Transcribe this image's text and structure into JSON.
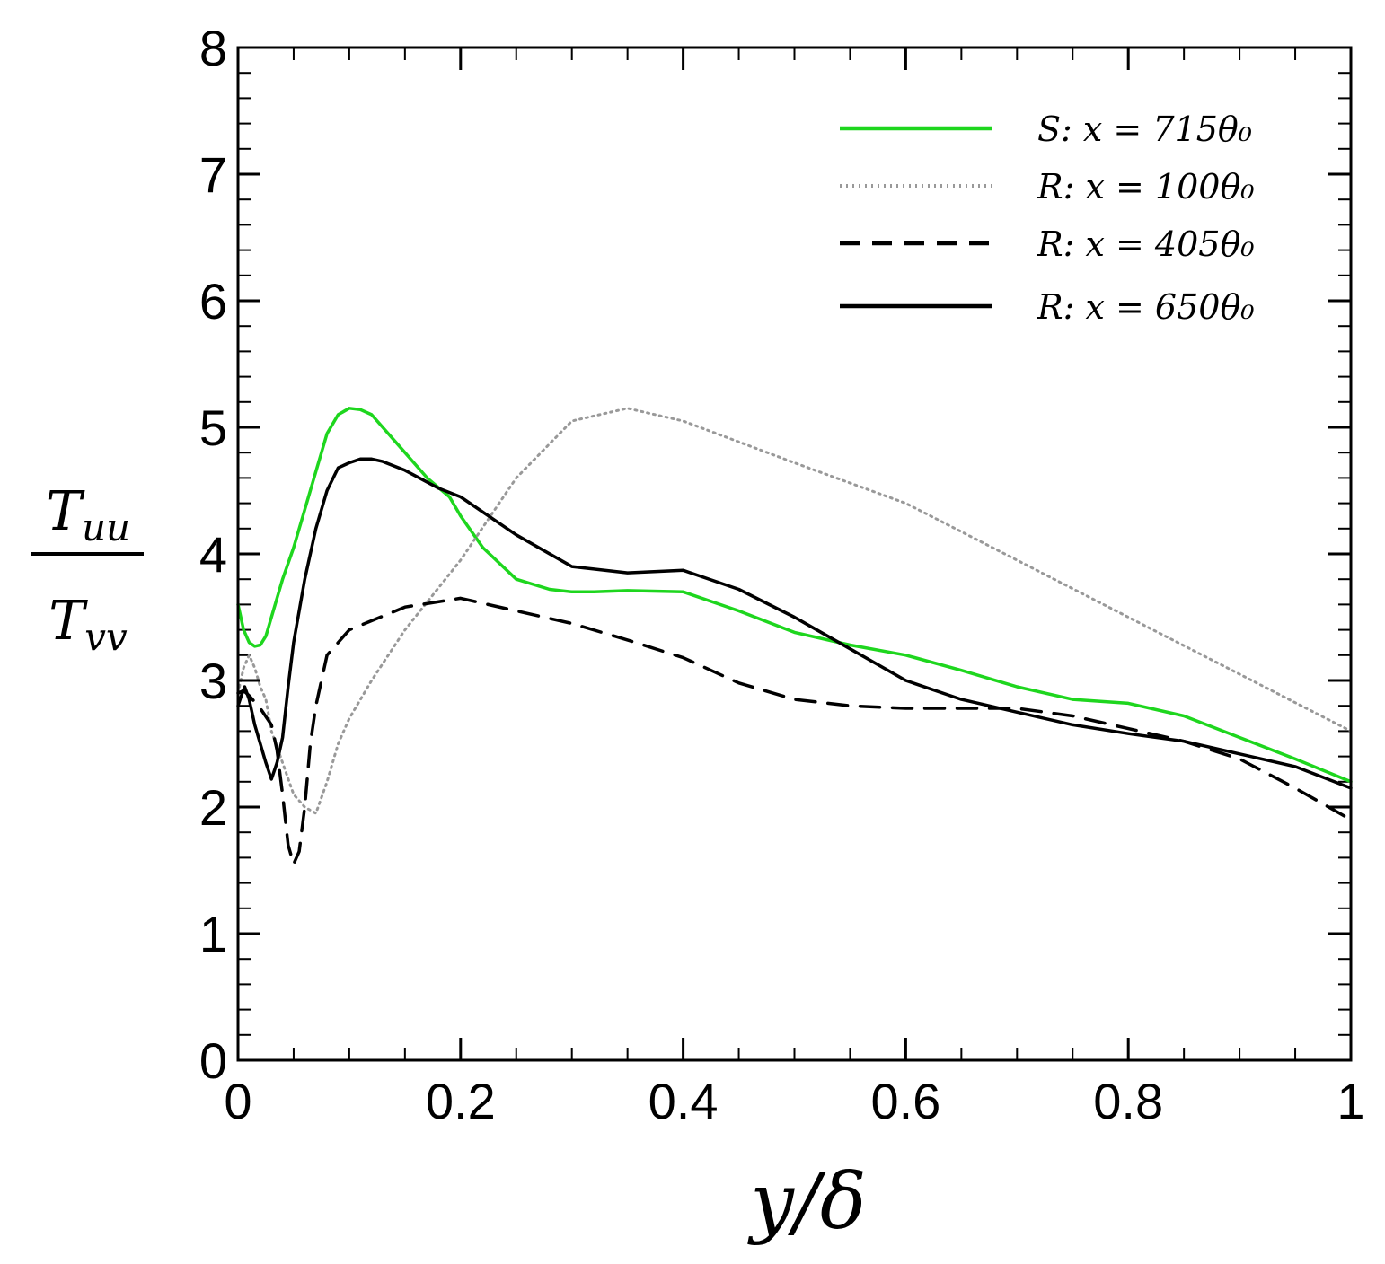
{
  "chart_data": {
    "type": "line",
    "title": "",
    "xlabel": "y/δ",
    "ylabel_numerator": "T_uu",
    "ylabel_denominator": "T_vv",
    "xlim": [
      0,
      1
    ],
    "ylim": [
      0,
      8
    ],
    "xticks": [
      0,
      0.2,
      0.4,
      0.6,
      0.8,
      1
    ],
    "xtick_labels": [
      "0",
      "0.2",
      "0.4",
      "0.6",
      "0.8",
      "1"
    ],
    "yticks": [
      0,
      1,
      2,
      3,
      4,
      5,
      6,
      7,
      8
    ],
    "ytick_labels": [
      "0",
      "1",
      "2",
      "3",
      "4",
      "5",
      "6",
      "7",
      "8"
    ],
    "grid": false,
    "legend_position": "top-right",
    "series": [
      {
        "name": "S: x = 715θ₀",
        "color": "#1ed61e",
        "style": "solid",
        "x": [
          0,
          0.005,
          0.01,
          0.015,
          0.02,
          0.025,
          0.03,
          0.04,
          0.05,
          0.06,
          0.07,
          0.08,
          0.09,
          0.1,
          0.11,
          0.12,
          0.13,
          0.15,
          0.17,
          0.19,
          0.2,
          0.22,
          0.25,
          0.28,
          0.3,
          0.32,
          0.35,
          0.4,
          0.45,
          0.5,
          0.55,
          0.6,
          0.65,
          0.7,
          0.75,
          0.8,
          0.85,
          0.9,
          0.95,
          1.0
        ],
        "y": [
          3.6,
          3.4,
          3.3,
          3.27,
          3.28,
          3.35,
          3.5,
          3.8,
          4.05,
          4.35,
          4.65,
          4.95,
          5.1,
          5.15,
          5.14,
          5.1,
          5.0,
          4.8,
          4.6,
          4.45,
          4.3,
          4.05,
          3.8,
          3.72,
          3.7,
          3.7,
          3.71,
          3.7,
          3.55,
          3.38,
          3.28,
          3.2,
          3.08,
          2.95,
          2.85,
          2.82,
          2.72,
          2.55,
          2.38,
          2.2
        ]
      },
      {
        "name": "R: x = 100θ₀",
        "color": "#999999",
        "style": "dotted",
        "x": [
          0,
          0.005,
          0.01,
          0.015,
          0.02,
          0.025,
          0.03,
          0.04,
          0.05,
          0.06,
          0.07,
          0.08,
          0.09,
          0.1,
          0.12,
          0.15,
          0.2,
          0.25,
          0.3,
          0.35,
          0.4,
          0.5,
          0.6,
          0.7,
          0.8,
          0.9,
          1.0
        ],
        "y": [
          2.9,
          3.1,
          3.2,
          3.1,
          2.95,
          2.85,
          2.6,
          2.35,
          2.1,
          2.0,
          1.95,
          2.2,
          2.5,
          2.7,
          3.0,
          3.4,
          3.95,
          4.6,
          5.05,
          5.15,
          5.05,
          4.72,
          4.4,
          3.95,
          3.5,
          3.05,
          2.6
        ]
      },
      {
        "name": "R: x = 405θ₀",
        "color": "#000000",
        "style": "dashed",
        "x": [
          0,
          0.005,
          0.01,
          0.02,
          0.03,
          0.035,
          0.04,
          0.045,
          0.05,
          0.055,
          0.06,
          0.065,
          0.07,
          0.08,
          0.1,
          0.15,
          0.2,
          0.25,
          0.3,
          0.35,
          0.4,
          0.45,
          0.5,
          0.55,
          0.6,
          0.65,
          0.7,
          0.75,
          0.8,
          0.85,
          0.9,
          0.95,
          1.0
        ],
        "y": [
          2.9,
          2.92,
          2.88,
          2.78,
          2.65,
          2.45,
          2.1,
          1.7,
          1.55,
          1.65,
          2.0,
          2.5,
          2.8,
          3.2,
          3.4,
          3.58,
          3.65,
          3.55,
          3.45,
          3.32,
          3.18,
          2.98,
          2.85,
          2.8,
          2.78,
          2.78,
          2.78,
          2.72,
          2.62,
          2.52,
          2.38,
          2.15,
          1.9
        ]
      },
      {
        "name": "R: x = 650θ₀",
        "color": "#000000",
        "style": "solid",
        "x": [
          0,
          0.003,
          0.006,
          0.01,
          0.015,
          0.02,
          0.025,
          0.03,
          0.035,
          0.04,
          0.045,
          0.05,
          0.06,
          0.07,
          0.08,
          0.09,
          0.1,
          0.11,
          0.12,
          0.13,
          0.15,
          0.18,
          0.2,
          0.25,
          0.3,
          0.35,
          0.4,
          0.45,
          0.5,
          0.55,
          0.6,
          0.65,
          0.7,
          0.75,
          0.8,
          0.85,
          0.9,
          0.95,
          1.0
        ],
        "y": [
          2.8,
          2.88,
          2.95,
          2.85,
          2.65,
          2.5,
          2.35,
          2.22,
          2.35,
          2.55,
          2.95,
          3.3,
          3.8,
          4.2,
          4.5,
          4.68,
          4.72,
          4.75,
          4.75,
          4.73,
          4.66,
          4.52,
          4.45,
          4.15,
          3.9,
          3.85,
          3.87,
          3.72,
          3.5,
          3.25,
          3.0,
          2.85,
          2.75,
          2.65,
          2.58,
          2.52,
          2.42,
          2.32,
          2.15
        ]
      }
    ]
  }
}
